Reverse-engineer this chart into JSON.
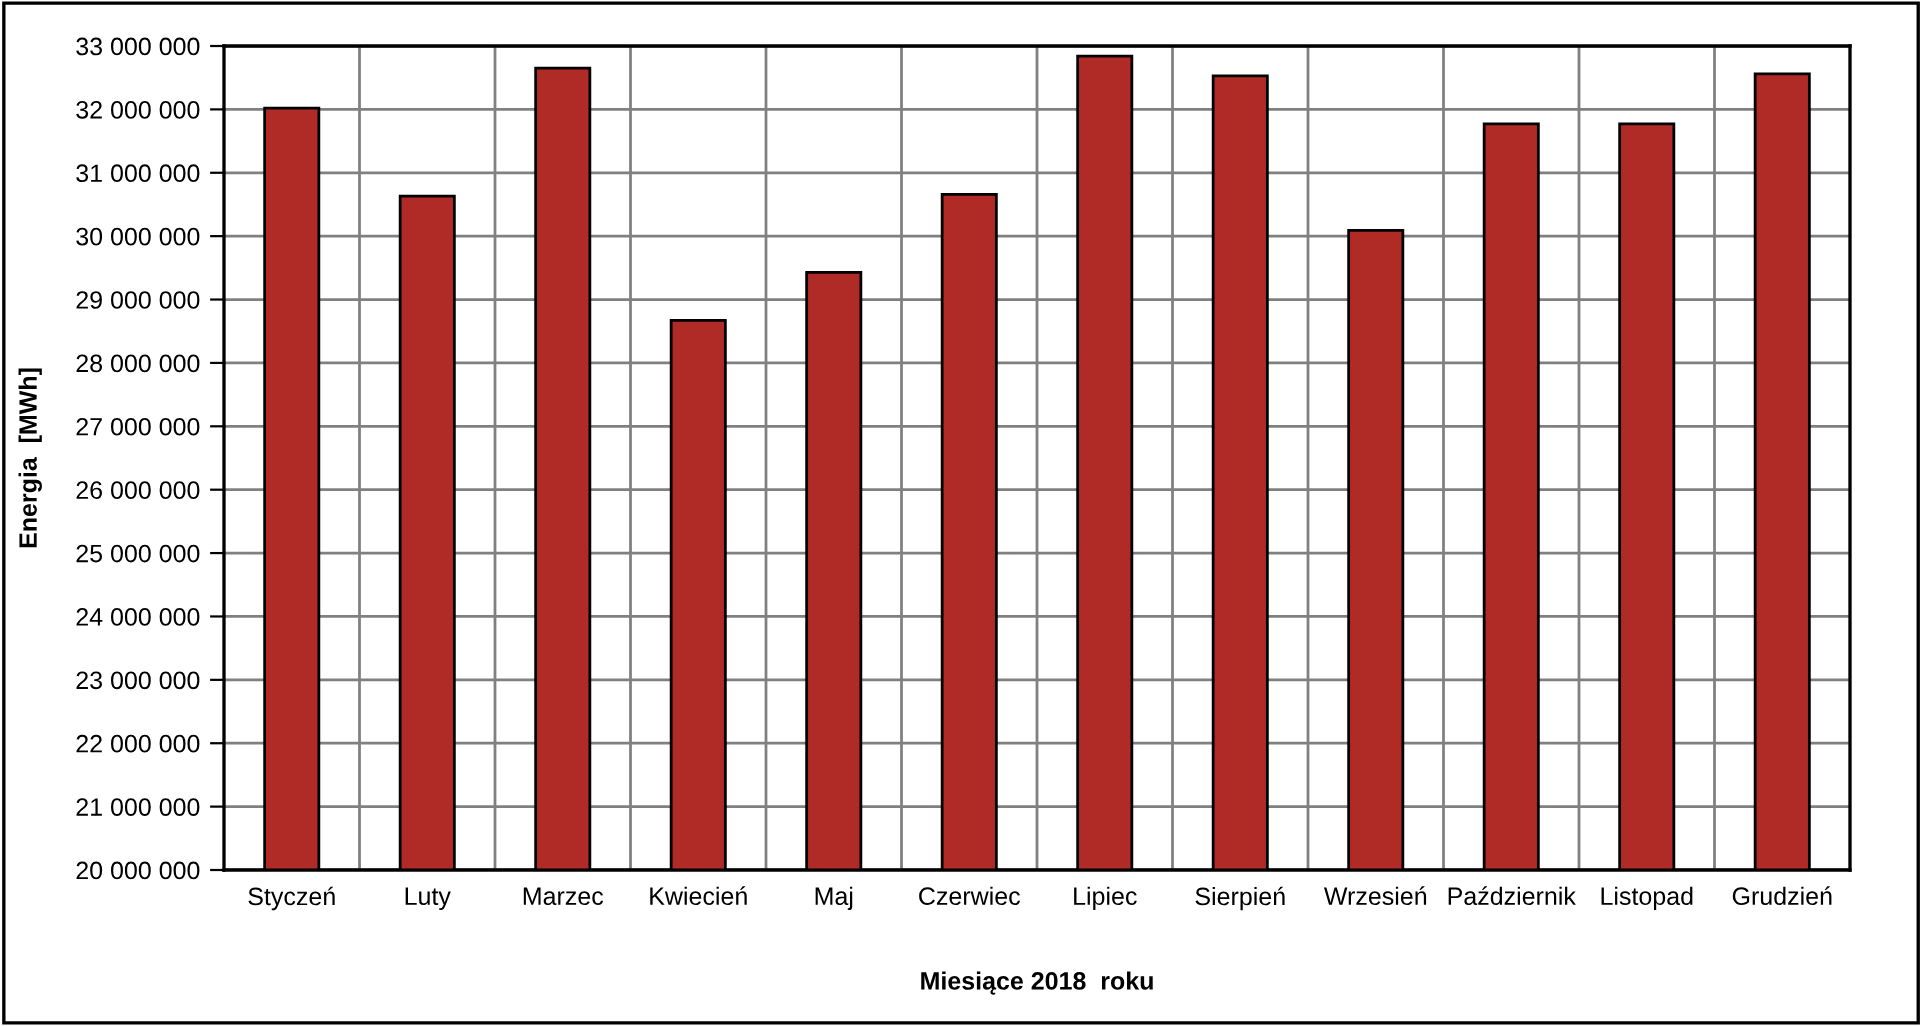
{
  "chart_data": {
    "type": "bar",
    "xlabel": "Miesiące 2018  roku",
    "ylabel": "Energia  [MWh]",
    "categories": [
      "Styczeń",
      "Luty",
      "Marzec",
      "Kwiecień",
      "Maj",
      "Czerwiec",
      "Lipiec",
      "Sierpień",
      "Wrzesień",
      "Październik",
      "Listopad",
      "Grudzień"
    ],
    "values": [
      32020000,
      30630000,
      32650000,
      28670000,
      29430000,
      30660000,
      32840000,
      32530000,
      30090000,
      31770000,
      31770000,
      32560000
    ],
    "color": "#b02a26",
    "ylim": [
      20000000,
      33000000
    ],
    "yticks": [
      {
        "value": 20000000,
        "label": "20 000 000"
      },
      {
        "value": 21000000,
        "label": "21 000 000"
      },
      {
        "value": 22000000,
        "label": "22 000 000"
      },
      {
        "value": 23000000,
        "label": "23 000 000"
      },
      {
        "value": 24000000,
        "label": "24 000 000"
      },
      {
        "value": 25000000,
        "label": "25 000 000"
      },
      {
        "value": 26000000,
        "label": "26 000 000"
      },
      {
        "value": 27000000,
        "label": "27 000 000"
      },
      {
        "value": 28000000,
        "label": "28 000 000"
      },
      {
        "value": 29000000,
        "label": "29 000 000"
      },
      {
        "value": 30000000,
        "label": "30 000 000"
      },
      {
        "value": 31000000,
        "label": "31 000 000"
      },
      {
        "value": 32000000,
        "label": "32 000 000"
      },
      {
        "value": 33000000,
        "label": "33 000 000"
      }
    ],
    "grid": true
  }
}
